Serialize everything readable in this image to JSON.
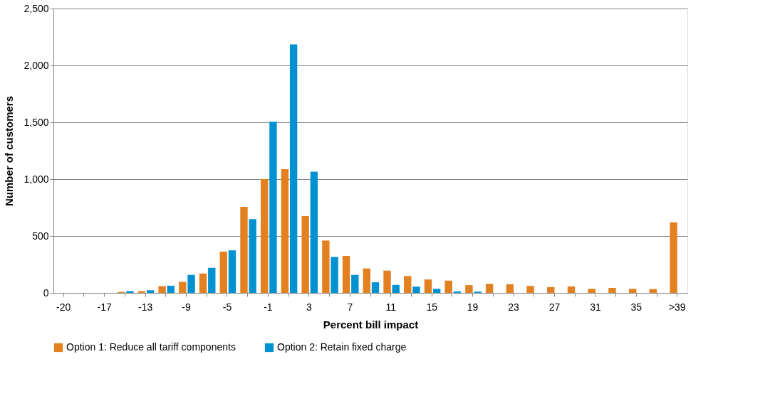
{
  "chart_data": {
    "type": "bar",
    "xlabel": "Percent bill impact",
    "ylabel": "Number of customers",
    "categories": [
      "-20",
      null,
      "-17",
      null,
      "-13",
      null,
      "-9",
      null,
      "-5",
      null,
      "-1",
      null,
      "3",
      null,
      "7",
      null,
      "11",
      null,
      "15",
      null,
      "19",
      null,
      "23",
      null,
      "27",
      null,
      "31",
      null,
      "35",
      null,
      ">39"
    ],
    "series": [
      {
        "name": "Option 1: Reduce all tariff components",
        "color": "#e3801f",
        "values": [
          0,
          0,
          0,
          8,
          15,
          59,
          97,
          170,
          363,
          756,
          1000,
          1088,
          675,
          460,
          325,
          215,
          196,
          148,
          118,
          108,
          68,
          80,
          76,
          61,
          51,
          57,
          36,
          44,
          36,
          34,
          620
        ]
      },
      {
        "name": "Option 2: Retain fixed charge",
        "color": "#0092d0",
        "values": [
          0,
          0,
          0,
          15,
          23,
          63,
          158,
          221,
          374,
          649,
          1505,
          2185,
          1065,
          316,
          158,
          93,
          70,
          55,
          36,
          13,
          11,
          0,
          0,
          0,
          0,
          0,
          0,
          0,
          0,
          0,
          0
        ]
      }
    ],
    "ylim": [
      0,
      2500
    ],
    "yticks": [
      0,
      {
        "value": 500,
        "label": "500"
      },
      {
        "value": 1000,
        "label": "1,000"
      },
      {
        "value": 1500,
        "label": "1,500"
      },
      {
        "value": 2000,
        "label": "2,000"
      },
      {
        "value": 2500,
        "label": "2,500"
      }
    ],
    "grid": "y",
    "legend": "bottom"
  }
}
